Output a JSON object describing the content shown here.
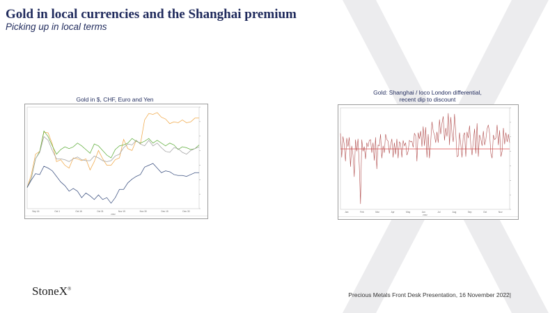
{
  "slide": {
    "title": "Gold in local currencies and the Shanghai premium",
    "subtitle": "Picking up in local terms"
  },
  "footer": {
    "logo_text": "StoneX",
    "logo_mark": "®",
    "caption": "Precious Metals Front Desk Presentation, 16 November 2022|"
  },
  "colors": {
    "title": "#1f2a5c",
    "usd": "#3a4f7f",
    "chf": "#5fae3b",
    "eur": "#a0a0a0",
    "yen": "#f0a848",
    "spread": "#b14e4e",
    "zero_line": "#e06060"
  },
  "chart_data": [
    {
      "type": "line",
      "title": "Gold in $, CHF, Euro and Yen",
      "x_tick_labels": [
        "Sep 16",
        "Oct 1",
        "Oct 16",
        "Oct 31",
        "Nov 15",
        "Nov 30",
        "Dec 15",
        "Dec 30"
      ],
      "x_label": "2022",
      "series": [
        {
          "key": "yen",
          "values": [
            96.5,
            97.9,
            100.1,
            100.4,
            102.5,
            102.4,
            101.2,
            99.3,
            99.5,
            98.9,
            98.6,
            99.7,
            99.6,
            99.4,
            99.6,
            98.4,
            99.3,
            100.5,
            99.6,
            98.9,
            98.9,
            99.5,
            99.7,
            101.7,
            100.7,
            100.5,
            101.6,
            101.2,
            103.8,
            104.5,
            104.4,
            104.6,
            104.1,
            103.9,
            103.4,
            103.6,
            103.5,
            103.8,
            103.5,
            103.6,
            104.0,
            104.0
          ]
        },
        {
          "key": "chf",
          "values": [
            96.5,
            97.5,
            99.6,
            100.4,
            102.6,
            102.0,
            101.0,
            100.1,
            100.6,
            100.9,
            100.7,
            100.9,
            101.3,
            101.0,
            100.6,
            100.2,
            101.2,
            101.0,
            100.5,
            100.0,
            99.7,
            100.6,
            101.0,
            101.1,
            101.3,
            101.8,
            101.5,
            101.3,
            101.5,
            101.8,
            101.3,
            101.6,
            101.3,
            101.0,
            101.3,
            101.1,
            100.6,
            100.9,
            100.8,
            100.6,
            100.7,
            101.1
          ]
        },
        {
          "key": "eur",
          "values": [
            96.5,
            97.5,
            99.6,
            100.3,
            102.0,
            101.6,
            100.5,
            99.6,
            99.6,
            99.5,
            99.3,
            99.6,
            99.8,
            99.5,
            99.4,
            99.4,
            99.9,
            99.7,
            99.4,
            99.3,
            99.4,
            99.9,
            100.1,
            100.8,
            101.2,
            101.1,
            101.6,
            101.2,
            101.0,
            101.6,
            101.0,
            101.3,
            100.8,
            100.4,
            100.3,
            100.8,
            100.7,
            100.3,
            100.1,
            100.5,
            100.7,
            100.9
          ]
        },
        {
          "key": "usd",
          "values": [
            96.5,
            97.3,
            98.0,
            97.9,
            98.8,
            98.6,
            98.3,
            97.7,
            97.1,
            96.7,
            96.1,
            96.4,
            96.1,
            95.4,
            95.9,
            95.6,
            95.2,
            95.7,
            95.2,
            95.4,
            94.8,
            95.4,
            96.3,
            96.3,
            97.0,
            97.4,
            97.7,
            97.9,
            98.7,
            98.9,
            99.1,
            98.6,
            98.1,
            98.3,
            98.2,
            97.9,
            97.8,
            97.8,
            97.7,
            97.9,
            98.1,
            98.1
          ]
        }
      ]
    },
    {
      "type": "line",
      "title_line1": "Gold: Shanghai / loco London differential,",
      "title_line2": "recent dip to discount",
      "x_tick_labels": [
        "Jan",
        "Feb",
        "Mar",
        "Apr",
        "May",
        "Jun",
        "Jul",
        "Aug",
        "Sep",
        "Oct",
        "Nov"
      ],
      "x_label": "2022",
      "zero_value": 0,
      "series": [
        {
          "key": "spread",
          "values": [
            2.0,
            -1.1,
            1.6,
            0.6,
            -1.6,
            1.4,
            0.3,
            1.5,
            -2.3,
            0.4,
            -0.8,
            -3.6,
            1.2,
            -0.3,
            1.3,
            -2.1,
            -7.1,
            1.2,
            -0.3,
            0.3,
            -1.3,
            0.8,
            0.3,
            1.1,
            1.2,
            -0.5,
            0.8,
            -1.5,
            1.5,
            -2.6,
            0.5,
            0.4,
            1.9,
            -1.2,
            0.4,
            -0.5,
            1.9,
            1.2,
            1.0,
            -0.6,
            0.5,
            1.3,
            -1.1,
            0.8,
            -0.7,
            1.3,
            -1.2,
            0.9,
            0.7,
            -1.1,
            1.1,
            0.4,
            0.8,
            -0.8,
            -0.3,
            1.1,
            0.9,
            1.0,
            0.2,
            2.0,
            1.7,
            -1.6,
            2.1,
            1.3,
            2.3,
            0.3,
            2.9,
            0.4,
            2.8,
            -1.1,
            1.9,
            -1.2,
            0.9,
            3.5,
            2.3,
            1.8,
            0.8,
            2.2,
            0.8,
            3.8,
            1.9,
            3.3,
            4.2,
            1.1,
            2.7,
            1.6,
            4.6,
            0.5,
            4.1,
            2.0,
            0.9,
            4.5,
            2.1,
            -1.0,
            -0.9,
            2.1,
            0.6,
            -1.1,
            1.7,
            2.1,
            -1.0,
            2.2,
            1.4,
            3.0,
            0.5,
            -0.8,
            1.0,
            2.6,
            -0.6,
            3.3,
            -1.0,
            1.8,
            1.3,
            0.4,
            2.3,
            0.5,
            1.2,
            2.6,
            3.1,
            2.0,
            -0.6,
            -1.2,
            1.8,
            1.2,
            1.4,
            3.1,
            0.5,
            2.4,
            -1.0,
            -0.3,
            2.7,
            0.6,
            2.1,
            0.9,
            1.9,
            0.8
          ]
        }
      ]
    }
  ]
}
